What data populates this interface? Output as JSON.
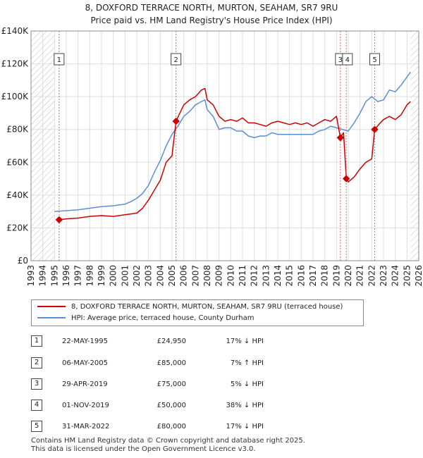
{
  "chart_data": {
    "type": "line",
    "title": "8, DOXFORD TERRACE NORTH, MURTON, SEAHAM, SR7 9RU",
    "subtitle": "Price paid vs. HM Land Registry's House Price Index (HPI)",
    "xlabel": "",
    "ylabel": "",
    "xlim": [
      1993,
      2026
    ],
    "ylim": [
      0,
      140000
    ],
    "y_ticks": [
      0,
      20000,
      40000,
      60000,
      80000,
      100000,
      120000,
      140000
    ],
    "y_tick_labels": [
      "£0",
      "£20K",
      "£40K",
      "£60K",
      "£80K",
      "£100K",
      "£120K",
      "£140K"
    ],
    "x_ticks": [
      "1993",
      "1994",
      "1995",
      "1996",
      "1997",
      "1998",
      "1999",
      "2000",
      "2001",
      "2002",
      "2003",
      "2004",
      "2005",
      "2006",
      "2007",
      "2008",
      "2009",
      "2010",
      "2011",
      "2012",
      "2013",
      "2014",
      "2015",
      "2016",
      "2017",
      "2018",
      "2019",
      "2020",
      "2021",
      "2022",
      "2023",
      "2024",
      "2025",
      "2026"
    ],
    "hatched_ranges": [
      [
        1993,
        1995.0
      ],
      [
        2025.3,
        2026
      ]
    ],
    "series": [
      {
        "name": "8, DOXFORD TERRACE NORTH, MURTON, SEAHAM, SR7 9RU (terraced house)",
        "color": "#cc0000",
        "x": [
          1995.39,
          1996,
          1997,
          1998,
          1999,
          2000,
          2001,
          2002,
          2002.5,
          2003,
          2003.5,
          2004,
          2004.5,
          2005.0,
          2005.34,
          2005.6,
          2006,
          2006.5,
          2007,
          2007.5,
          2007.8,
          2008,
          2008.5,
          2009,
          2009.5,
          2010,
          2010.5,
          2011,
          2011.5,
          2012,
          2012.5,
          2013,
          2013.5,
          2014,
          2014.5,
          2015,
          2015.5,
          2016,
          2016.5,
          2017,
          2017.5,
          2018,
          2018.5,
          2019.0,
          2019.33,
          2019.6,
          2019.83,
          2020.0,
          2020.5,
          2021,
          2021.5,
          2022.0,
          2022.25,
          2022.6,
          2023,
          2023.5,
          2024,
          2024.5,
          2025,
          2025.3
        ],
        "values": [
          24950,
          25500,
          26000,
          27000,
          27500,
          27000,
          28000,
          29000,
          32000,
          37000,
          43000,
          49000,
          60000,
          64000,
          85000,
          89000,
          95000,
          98000,
          100000,
          104000,
          105000,
          98000,
          95000,
          88000,
          85000,
          86000,
          85000,
          87000,
          84000,
          84000,
          83000,
          82000,
          84000,
          85000,
          84000,
          83000,
          84000,
          83000,
          84000,
          82000,
          84000,
          86000,
          85000,
          88000,
          75000,
          78000,
          50000,
          48000,
          51000,
          56000,
          60000,
          62000,
          80000,
          83000,
          86000,
          88000,
          86000,
          89000,
          95000,
          97000
        ]
      },
      {
        "name": "HPI: Average price, terraced house, County Durham",
        "color": "#5b8fd4",
        "x": [
          1995.0,
          1996,
          1997,
          1998,
          1999,
          2000,
          2001,
          2001.5,
          2002,
          2002.5,
          2003,
          2003.5,
          2004,
          2004.5,
          2005.0,
          2005.5,
          2006,
          2006.5,
          2007,
          2007.5,
          2007.8,
          2008,
          2008.5,
          2009,
          2009.5,
          2010,
          2010.5,
          2011,
          2011.5,
          2012,
          2012.5,
          2013,
          2013.5,
          2014,
          2014.5,
          2015,
          2015.5,
          2016,
          2016.5,
          2017,
          2017.5,
          2018,
          2018.5,
          2019,
          2019.5,
          2020,
          2020.5,
          2021,
          2021.5,
          2022,
          2022.5,
          2023,
          2023.5,
          2024,
          2024.5,
          2025,
          2025.3
        ],
        "values": [
          30000,
          30500,
          31000,
          32000,
          33000,
          33500,
          34500,
          36000,
          38000,
          41000,
          46000,
          54000,
          61000,
          70000,
          77000,
          82000,
          88000,
          91000,
          95000,
          97000,
          98000,
          92000,
          88000,
          80000,
          81000,
          81000,
          79000,
          79000,
          76000,
          75000,
          76000,
          76000,
          78000,
          77000,
          77000,
          77000,
          77000,
          77000,
          77000,
          77000,
          79000,
          80000,
          82000,
          81000,
          80000,
          79000,
          84000,
          90000,
          97000,
          100000,
          97000,
          98000,
          104000,
          103000,
          107000,
          112000,
          115000
        ]
      }
    ],
    "sales": [
      {
        "label": "1",
        "x": 1995.39,
        "value": 24950
      },
      {
        "label": "2",
        "x": 2005.34,
        "value": 85000
      },
      {
        "label": "3",
        "x": 2019.33,
        "value": 75000
      },
      {
        "label": "4",
        "x": 2019.83,
        "value": 50000
      },
      {
        "label": "5",
        "x": 2022.25,
        "value": 80000
      }
    ]
  },
  "legend": {
    "items": [
      {
        "label": "8, DOXFORD TERRACE NORTH, MURTON, SEAHAM, SR7 9RU (terraced house)",
        "color": "#cc0000"
      },
      {
        "label": "HPI: Average price, terraced house, County Durham",
        "color": "#5b8fd4"
      }
    ]
  },
  "table": {
    "rows": [
      {
        "num": "1",
        "date": "22-MAY-1995",
        "price": "£24,950",
        "hpi": "17% ↓ HPI"
      },
      {
        "num": "2",
        "date": "06-MAY-2005",
        "price": "£85,000",
        "hpi": "7% ↑ HPI"
      },
      {
        "num": "3",
        "date": "29-APR-2019",
        "price": "£75,000",
        "hpi": "5% ↓ HPI"
      },
      {
        "num": "4",
        "date": "01-NOV-2019",
        "price": "£50,000",
        "hpi": "38% ↓ HPI"
      },
      {
        "num": "5",
        "date": "31-MAR-2022",
        "price": "£80,000",
        "hpi": "17% ↓ HPI"
      }
    ]
  },
  "footer": {
    "line1": "Contains HM Land Registry data © Crown copyright and database right 2025.",
    "line2": "This data is licensed under the Open Government Licence v3.0."
  }
}
